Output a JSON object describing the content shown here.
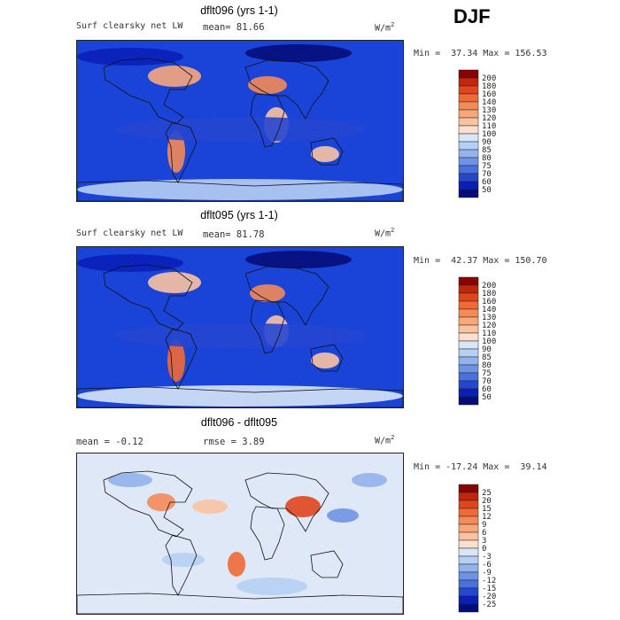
{
  "season": "DJF",
  "panels": [
    {
      "title": "dflt096 (yrs 1-1)",
      "field": "Surf clearsky net LW",
      "mean_text": "mean=  81.66",
      "units_base": "W/m",
      "units_exp": "2",
      "minmax": "Min =  37.34 Max = 156.53",
      "colorbar_labels": [
        "200",
        "180",
        "160",
        "140",
        "130",
        "120",
        "110",
        "100",
        "90",
        "85",
        "80",
        "75",
        "70",
        "60",
        "50"
      ],
      "colorbar_colors": [
        "#8b0000",
        "#c0250e",
        "#e0461c",
        "#f06a36",
        "#f48a58",
        "#f7a77c",
        "#f9c3a2",
        "#fbe0cf",
        "#d8e6f7",
        "#b6cff2",
        "#93b3ec",
        "#6f93e4",
        "#4a70dc",
        "#2646d0",
        "#0a1fb8",
        "#050d7a"
      ],
      "map_base": "#1a44d8"
    },
    {
      "title": "dflt095 (yrs 1-1)",
      "field": "Surf clearsky net LW",
      "mean_text": "mean=  81.78",
      "units_base": "W/m",
      "units_exp": "2",
      "minmax": "Min =  42.37 Max = 150.70",
      "colorbar_labels": [
        "200",
        "180",
        "160",
        "140",
        "130",
        "120",
        "110",
        "100",
        "90",
        "85",
        "80",
        "75",
        "70",
        "60",
        "50"
      ],
      "colorbar_colors": [
        "#8b0000",
        "#c0250e",
        "#e0461c",
        "#f06a36",
        "#f48a58",
        "#f7a77c",
        "#f9c3a2",
        "#fbe0cf",
        "#d8e6f7",
        "#b6cff2",
        "#93b3ec",
        "#6f93e4",
        "#4a70dc",
        "#2646d0",
        "#0a1fb8",
        "#050d7a"
      ],
      "map_base": "#1a44d8"
    },
    {
      "title": "dflt096 - dflt095",
      "mean_text": "mean =  -0.12",
      "rmse_text": "rmse =   3.89",
      "units_base": "W/m",
      "units_exp": "2",
      "minmax": "Min = -17.24 Max =  39.14",
      "colorbar_labels": [
        "25",
        "20",
        "15",
        "12",
        "9",
        "6",
        "3",
        "0",
        "-3",
        "-6",
        "-9",
        "-12",
        "-15",
        "-20",
        "-25"
      ],
      "colorbar_colors": [
        "#8b0000",
        "#c0250e",
        "#e0461c",
        "#f06a36",
        "#f48a58",
        "#f7a77c",
        "#f9c3a2",
        "#fbe0cf",
        "#d8e6f7",
        "#b6cff2",
        "#93b3ec",
        "#6f93e4",
        "#4a70dc",
        "#2646d0",
        "#0a1fb8",
        "#050d7a"
      ],
      "map_base": "#dfe8f7"
    }
  ],
  "chart_data": {
    "type": "heatmap",
    "season": "DJF",
    "variable": "Surf clearsky net LW",
    "units": "W/m2",
    "maps": [
      {
        "title": "dflt096 (yrs 1-1)",
        "mean": 81.66,
        "min": 37.34,
        "max": 156.53,
        "levels": [
          50,
          60,
          70,
          75,
          80,
          85,
          90,
          100,
          110,
          120,
          130,
          140,
          160,
          180,
          200
        ]
      },
      {
        "title": "dflt095 (yrs 1-1)",
        "mean": 81.78,
        "min": 42.37,
        "max": 150.7,
        "levels": [
          50,
          60,
          70,
          75,
          80,
          85,
          90,
          100,
          110,
          120,
          130,
          140,
          160,
          180,
          200
        ]
      },
      {
        "title": "dflt096 - dflt095",
        "mean": -0.12,
        "rmse": 3.89,
        "min": -17.24,
        "max": 39.14,
        "levels": [
          -25,
          -20,
          -15,
          -12,
          -9,
          -6,
          -3,
          0,
          3,
          6,
          9,
          12,
          15,
          20,
          25
        ]
      }
    ]
  }
}
